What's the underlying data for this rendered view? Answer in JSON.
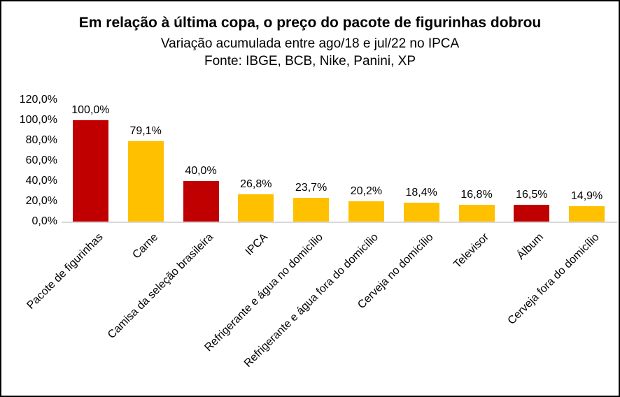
{
  "header": {
    "title": "Em relação à última copa, o preço do pacote de figurinhas dobrou",
    "subtitle": "Variação acumulada entre ago/18 e jul/22 no IPCA",
    "source": "Fonte: IBGE, BCB, Nike, Panini, XP"
  },
  "chart_data": {
    "type": "bar",
    "title": "Em relação à última copa, o preço do pacote de figurinhas dobrou",
    "subtitle": "Variação acumulada entre ago/18 e jul/22 no IPCA",
    "source": "Fonte: IBGE, BCB, Nike, Panini, XP",
    "categories": [
      "Pacote de figurinhas",
      "Carne",
      "Camisa da seleção brasileira",
      "IPCA",
      "Refrigerante e água no domicílio",
      "Refrigerante e água fora do domicílio",
      "Cerveja no domicílio",
      "Televisor",
      "Álbum",
      "Cerveja fora do domicílio"
    ],
    "values": [
      100.0,
      79.1,
      40.0,
      26.8,
      23.7,
      20.2,
      18.4,
      16.8,
      16.5,
      14.9
    ],
    "value_labels": [
      "100,0%",
      "79,1%",
      "40,0%",
      "26,8%",
      "23,7%",
      "20,2%",
      "18,4%",
      "16,8%",
      "16,5%",
      "14,9%"
    ],
    "bar_colors": [
      "#C00000",
      "#FFC000",
      "#C00000",
      "#FFC000",
      "#FFC000",
      "#FFC000",
      "#FFC000",
      "#FFC000",
      "#C00000",
      "#FFC000"
    ],
    "highlight_color": "#C00000",
    "default_color": "#FFC000",
    "y_ticks": [
      "0,0%",
      "20,0%",
      "40,0%",
      "60,0%",
      "80,0%",
      "100,0%",
      "120,0%"
    ],
    "y_tick_values": [
      0,
      20,
      40,
      60,
      80,
      100,
      120
    ],
    "ylim": [
      0,
      120
    ],
    "xlabel": "",
    "ylabel": "",
    "grid": false,
    "legend": "none",
    "axis_line_color": "#D9D9D9",
    "x_label_rotation_deg": 45
  }
}
